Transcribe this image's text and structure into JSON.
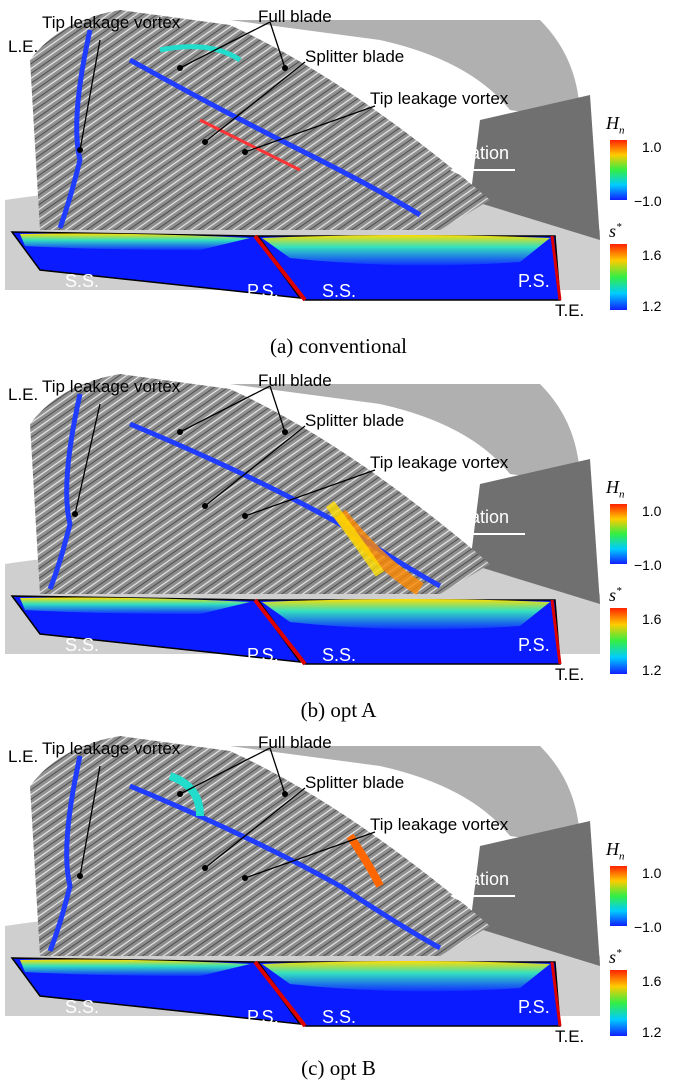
{
  "panels": [
    {
      "caption": "(a)   conventional"
    },
    {
      "caption": "(b)   opt A"
    },
    {
      "caption": "(c)   opt B"
    }
  ],
  "labels": {
    "le": "L.E.",
    "te": "T.E.",
    "tlv_left": "Tip leakage vortex",
    "full_blade": "Full blade",
    "splitter": "Splitter blade",
    "tlv_right": "Tip leakage vortex",
    "rotation": "Rotation",
    "ss": "S.S.",
    "ps": "P.S."
  },
  "colorbar_hn": {
    "symbol": "H",
    "sub": "n",
    "max": "1.0",
    "min": "−1.0"
  },
  "colorbar_s": {
    "symbol": "s",
    "sup": "*",
    "max": "1.6",
    "min": "1.2"
  },
  "colors": {
    "hub": "#c8c8c8",
    "blade": "#9e9e9e",
    "shroud": "#6f6f6f",
    "vortex_blue": "#1f3cff",
    "contour_blue": "#0a1cff"
  }
}
